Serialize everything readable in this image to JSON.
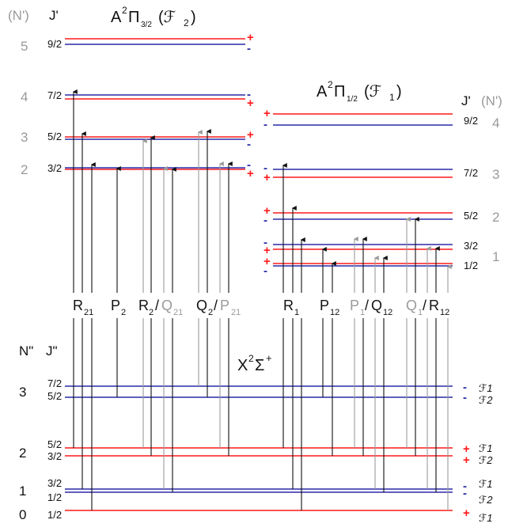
{
  "colors": {
    "red": "#ff1a1a",
    "blue": "#2a2aa8",
    "black": "#111111",
    "gray": "#9a9a9a"
  },
  "upper_left": {
    "header_n": "(N')",
    "header_j": "J'",
    "title_main": "A",
    "title_sup": "2",
    "title_pi": "Π",
    "title_sub": "3/2",
    "title_f": "(ℱ",
    "title_fsub": "2",
    "title_close": ")",
    "levels": [
      {
        "N": "5",
        "J": "9/2",
        "parity_top": "+",
        "parity_bottom": "-"
      },
      {
        "N": "4",
        "J": "7/2",
        "parity_top": "-",
        "parity_bottom": "+"
      },
      {
        "N": "3",
        "J": "5/2",
        "parity_top": "+",
        "parity_bottom": "-"
      },
      {
        "N": "2",
        "J": "3/2",
        "parity_top": "-",
        "parity_bottom": "+"
      }
    ]
  },
  "upper_right": {
    "header_j": "J'",
    "header_n": "(N')",
    "title_main": "A",
    "title_sup": "2",
    "title_pi": "Π",
    "title_sub": "1/2",
    "title_f": "(ℱ",
    "title_fsub": "1",
    "title_close": ")",
    "levels": [
      {
        "N": "4",
        "J": "9/2",
        "parity_top": "+",
        "parity_bottom": "-"
      },
      {
        "N": "3",
        "J": "7/2",
        "parity_top": "-",
        "parity_bottom": "+"
      },
      {
        "N": "2",
        "J": "5/2",
        "parity_top": "+",
        "parity_bottom": "-"
      },
      {
        "N": "1",
        "J": "3/2 1/2",
        "parity_top": "-",
        "parity_bottom": "+"
      }
    ]
  },
  "ground": {
    "header_n": "N\"",
    "header_j": "J\"",
    "title_main": "X",
    "title_sup": "2",
    "title_sigma": "Σ",
    "title_sup2": "+",
    "levels": [
      {
        "N": "3",
        "J_top": "7/2",
        "J_bottom": "5/2",
        "parity": "-",
        "F_top": "ℱ1",
        "F_bottom": "ℱ2"
      },
      {
        "N": "2",
        "J_top": "5/2",
        "J_bottom": "3/2",
        "parity": "+",
        "F_top": "ℱ1",
        "F_bottom": "ℱ2"
      },
      {
        "N": "1",
        "J_top": "3/2",
        "J_bottom": "1/2",
        "parity": "-",
        "F_top": "ℱ1",
        "F_bottom": "ℱ2"
      },
      {
        "N": "0",
        "J_top": "1/2",
        "parity": "+",
        "F_top": "ℱ1"
      }
    ]
  },
  "branches_left": [
    {
      "main": "R",
      "sub": "21"
    },
    {
      "main": "P",
      "sub": "2"
    },
    {
      "main": "R",
      "sub": "2",
      "slash": "/",
      "main2": "Q",
      "sub2": "21"
    },
    {
      "main": "Q",
      "sub": "2",
      "slash": "/",
      "main2": "P",
      "sub2": "21"
    }
  ],
  "branches_right": [
    {
      "main": "R",
      "sub": "1"
    },
    {
      "main": "P",
      "sub": "12"
    },
    {
      "main": "P",
      "sub": "1",
      "slash": "/",
      "main2": "Q",
      "sub2": "12"
    },
    {
      "main": "Q",
      "sub": "1",
      "slash": "/",
      "main2": "R",
      "sub2": "12"
    }
  ]
}
